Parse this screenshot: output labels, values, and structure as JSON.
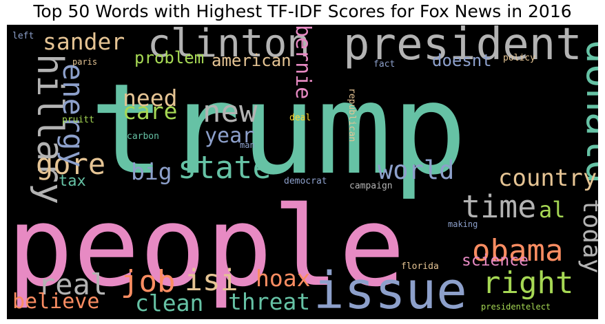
{
  "chart_data": {
    "type": "wordcloud",
    "title": "Top 50 Words with Highest TF-IDF Scores for Fox News in 2016",
    "background": "#000000",
    "palette": [
      "#66c2a5",
      "#fc8d62",
      "#8da0cb",
      "#e78ac3",
      "#a6d854",
      "#ffd92f",
      "#e5c494",
      "#b3b3b3"
    ],
    "words": [
      {
        "text": "trump",
        "color": "#66c2a5"
      },
      {
        "text": "people",
        "color": "#e78ac3"
      },
      {
        "text": "president",
        "color": "#b3b3b3"
      },
      {
        "text": "issue",
        "color": "#8da0cb"
      },
      {
        "text": "clinton",
        "color": "#b3b3b3"
      },
      {
        "text": "donald",
        "color": "#66c2a5"
      },
      {
        "text": "hillary",
        "color": "#b3b3b3"
      },
      {
        "text": "obama",
        "color": "#fc8d62"
      },
      {
        "text": "right",
        "color": "#a6d854"
      },
      {
        "text": "time",
        "color": "#b3b3b3"
      },
      {
        "text": "state",
        "color": "#66c2a5"
      },
      {
        "text": "new",
        "color": "#b3b3b3"
      },
      {
        "text": "gore",
        "color": "#e5c494"
      },
      {
        "text": "energy",
        "color": "#8da0cb"
      },
      {
        "text": "job",
        "color": "#fc8d62"
      },
      {
        "text": "real",
        "color": "#b3b3b3"
      },
      {
        "text": "world",
        "color": "#8da0cb"
      },
      {
        "text": "country",
        "color": "#e5c494"
      },
      {
        "text": "isi",
        "color": "#e5c494"
      },
      {
        "text": "clean",
        "color": "#66c2a5"
      },
      {
        "text": "threat",
        "color": "#66c2a5"
      },
      {
        "text": "believe",
        "color": "#fc8d62"
      },
      {
        "text": "hoax",
        "color": "#fc8d62"
      },
      {
        "text": "today",
        "color": "#b3b3b3"
      },
      {
        "text": "sander",
        "color": "#e5c494"
      },
      {
        "text": "bernie",
        "color": "#e78ac3"
      },
      {
        "text": "need",
        "color": "#e5c494"
      },
      {
        "text": "care",
        "color": "#a6d854"
      },
      {
        "text": "year",
        "color": "#8da0cb"
      },
      {
        "text": "big",
        "color": "#8da0cb"
      },
      {
        "text": "al",
        "color": "#a6d854"
      },
      {
        "text": "science",
        "color": "#e78ac3"
      },
      {
        "text": "american",
        "color": "#e5c494"
      },
      {
        "text": "problem",
        "color": "#a6d854"
      },
      {
        "text": "doesnt",
        "color": "#8da0cb"
      },
      {
        "text": "tax",
        "color": "#66c2a5"
      },
      {
        "text": "left",
        "color": "#8da0cb"
      },
      {
        "text": "paris",
        "color": "#e5c494"
      },
      {
        "text": "fact",
        "color": "#8da0cb"
      },
      {
        "text": "policy",
        "color": "#e5c494"
      },
      {
        "text": "pruitt",
        "color": "#a6d854"
      },
      {
        "text": "deal",
        "color": "#ffd92f"
      },
      {
        "text": "carbon",
        "color": "#66c2a5"
      },
      {
        "text": "man",
        "color": "#8da0cb"
      },
      {
        "text": "republican",
        "color": "#e5c494"
      },
      {
        "text": "democrat",
        "color": "#8da0cb"
      },
      {
        "text": "campaign",
        "color": "#b3b3b3"
      },
      {
        "text": "making",
        "color": "#8da0cb"
      },
      {
        "text": "florida",
        "color": "#e5c494"
      },
      {
        "text": "presidentelect",
        "color": "#a6d854"
      }
    ]
  }
}
